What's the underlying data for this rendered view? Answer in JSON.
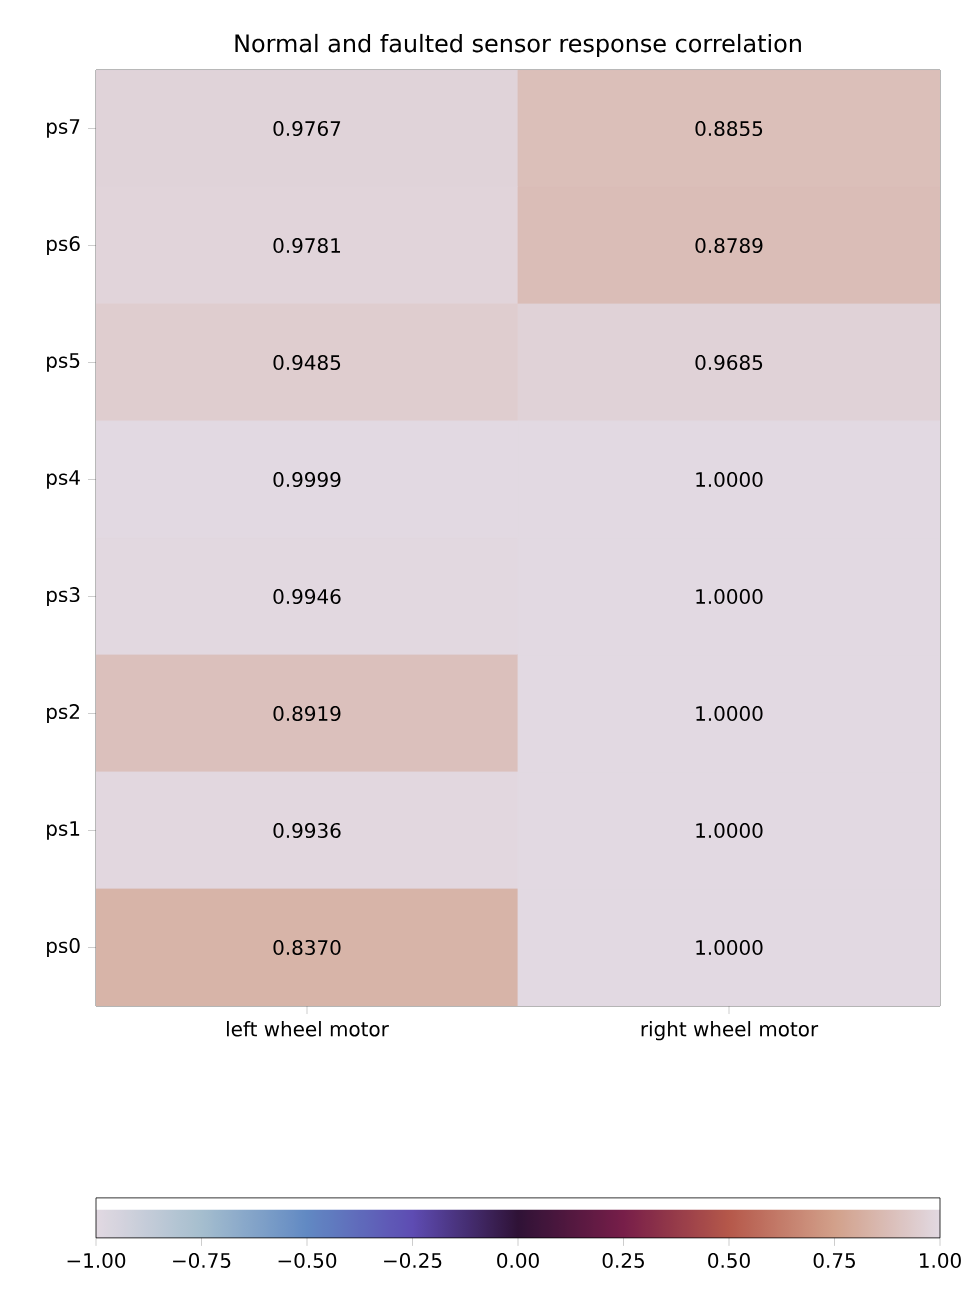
{
  "chart_data": {
    "type": "heatmap",
    "title": "Normal and faulted sensor response correlation",
    "categories": [
      "left wheel motor",
      "right wheel motor"
    ],
    "y_categories": [
      "ps7",
      "ps6",
      "ps5",
      "ps4",
      "ps3",
      "ps2",
      "ps1",
      "ps0"
    ],
    "cells": [
      [
        0.9767,
        0.8855
      ],
      [
        0.9781,
        0.8789
      ],
      [
        0.9485,
        0.9685
      ],
      [
        0.9999,
        1.0
      ],
      [
        0.9946,
        1.0
      ],
      [
        0.8919,
        1.0
      ],
      [
        0.9936,
        1.0
      ],
      [
        0.837,
        1.0
      ]
    ],
    "cell_labels": [
      [
        "0.9767",
        "0.8855"
      ],
      [
        "0.9781",
        "0.8789"
      ],
      [
        "0.9485",
        "0.9685"
      ],
      [
        "0.9999",
        "1.0000"
      ],
      [
        "0.9946",
        "1.0000"
      ],
      [
        "0.8919",
        "1.0000"
      ],
      [
        "0.9936",
        "1.0000"
      ],
      [
        "0.8370",
        "1.0000"
      ]
    ],
    "clim": [
      -1,
      1
    ],
    "cticks": [
      {
        "value": -1,
        "label": "−1.00"
      },
      {
        "value": -0.75,
        "label": "−0.75"
      },
      {
        "value": -0.5,
        "label": "−0.50"
      },
      {
        "value": -0.25,
        "label": "−0.25"
      },
      {
        "value": 0,
        "label": "0.00"
      },
      {
        "value": 0.25,
        "label": "0.25"
      },
      {
        "value": 0.5,
        "label": "0.50"
      },
      {
        "value": 0.75,
        "label": "0.75"
      },
      {
        "value": 1,
        "label": "1.00"
      }
    ]
  }
}
